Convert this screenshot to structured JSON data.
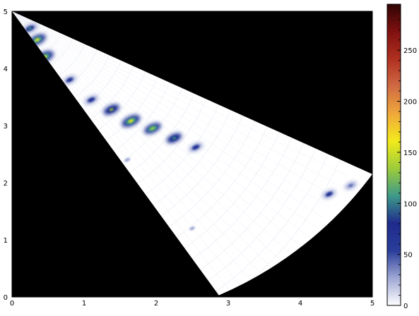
{
  "chart_data": {
    "type": "heatmap",
    "title": "",
    "xlabel": "",
    "ylabel": "",
    "xlim": [
      0,
      5
    ],
    "ylim": [
      0,
      5
    ],
    "x_ticks": [
      "0",
      "1",
      "2",
      "3",
      "4",
      "5"
    ],
    "y_ticks": [
      "0",
      "1",
      "2",
      "3",
      "4",
      "5"
    ],
    "background_color": "#000000",
    "grid": false,
    "sector": {
      "apex": [
        0,
        5
      ],
      "corners": [
        [
          2.87,
          0.03
        ],
        [
          5.0,
          2.15
        ]
      ],
      "outer_arc": true
    },
    "colorbar": {
      "range": [
        0,
        295
      ],
      "ticks": [
        "0",
        "50",
        "100",
        "150",
        "200",
        "250"
      ],
      "colormap": [
        "#ffffff",
        "#9ea7d4",
        "#2a3e9a",
        "#1f2a8c",
        "#3e9a8a",
        "#9ccc3a",
        "#f2ea1c",
        "#f0a83a",
        "#d06a44",
        "#b03020",
        "#801010",
        "#300404"
      ]
    },
    "hotspots": [
      {
        "x": 0.45,
        "y": 4.2,
        "value": 170
      },
      {
        "x": 0.35,
        "y": 4.5,
        "value": 150
      },
      {
        "x": 0.25,
        "y": 4.7,
        "value": 110
      },
      {
        "x": 0.8,
        "y": 3.8,
        "value": 70
      },
      {
        "x": 1.1,
        "y": 3.45,
        "value": 85
      },
      {
        "x": 1.38,
        "y": 3.28,
        "value": 125
      },
      {
        "x": 1.65,
        "y": 3.08,
        "value": 170
      },
      {
        "x": 1.95,
        "y": 2.95,
        "value": 140
      },
      {
        "x": 2.25,
        "y": 2.78,
        "value": 115
      },
      {
        "x": 2.55,
        "y": 2.62,
        "value": 90
      },
      {
        "x": 4.4,
        "y": 1.8,
        "value": 75
      },
      {
        "x": 4.7,
        "y": 1.95,
        "value": 55
      },
      {
        "x": 1.6,
        "y": 2.4,
        "value": 35
      },
      {
        "x": 2.5,
        "y": 1.2,
        "value": 20
      }
    ]
  }
}
